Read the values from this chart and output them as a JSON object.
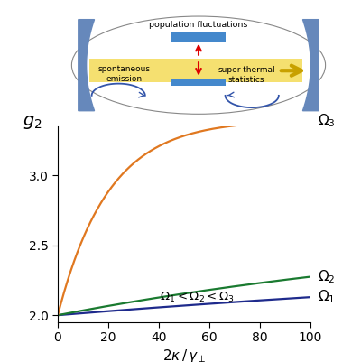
{
  "xlim": [
    0,
    100
  ],
  "ylim": [
    1.95,
    3.35
  ],
  "yticks": [
    2.0,
    2.5,
    3.0
  ],
  "xticks": [
    0,
    20,
    40,
    60,
    80,
    100
  ],
  "curve_params": [
    [
      0.28,
      0.53
    ],
    [
      0.5,
      0.7
    ],
    [
      5.0,
      1.4
    ]
  ],
  "omega_colors": [
    "#1e2a8c",
    "#1a7a30",
    "#e07820"
  ],
  "inset_mirror_color": "#6688bb",
  "inset_beam_color": "#f5e070",
  "inset_beam_edge": "#e8c830",
  "inset_led_color": "#4488cc",
  "inset_arrow_color": "#c8a000",
  "inset_red_color": "#dd0000",
  "inset_curve_color": "#3355aa",
  "inset_text_color": "#000000"
}
